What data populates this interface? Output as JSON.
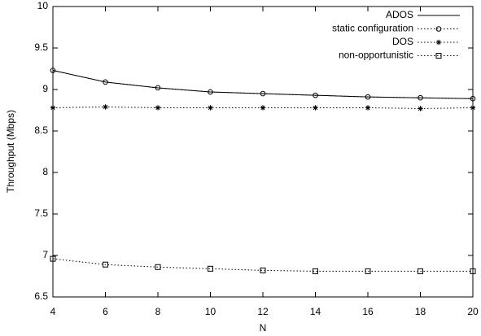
{
  "chart_data": {
    "type": "line",
    "x_label": "N",
    "y_label": "Throughput (Mbps)",
    "x": [
      4,
      6,
      8,
      10,
      12,
      14,
      16,
      18,
      20
    ],
    "series": [
      {
        "name": "ADOS",
        "color": "#000000",
        "dash": "solid",
        "marker": "none",
        "values": [
          9.23,
          9.09,
          9.02,
          8.97,
          8.95,
          8.93,
          8.91,
          8.9,
          8.89
        ]
      },
      {
        "name": "static configuration",
        "color": "#000000",
        "dash": "dotted",
        "marker": "circle",
        "values": [
          9.23,
          9.09,
          9.02,
          8.97,
          8.95,
          8.93,
          8.91,
          8.9,
          8.89
        ]
      },
      {
        "name": "DOS",
        "color": "#000000",
        "dash": "dotted",
        "marker": "star",
        "values": [
          8.78,
          8.79,
          8.78,
          8.78,
          8.78,
          8.78,
          8.78,
          8.77,
          8.78
        ]
      },
      {
        "name": "non-opportunistic",
        "color": "#000000",
        "dash": "dotted",
        "marker": "square",
        "values": [
          6.96,
          6.89,
          6.86,
          6.84,
          6.82,
          6.81,
          6.81,
          6.81,
          6.81
        ]
      }
    ],
    "xlim": [
      4,
      20
    ],
    "xticks": [
      4,
      6,
      8,
      10,
      12,
      14,
      16,
      18,
      20
    ],
    "ylim": [
      6.5,
      10
    ],
    "yticks": [
      6.5,
      7,
      7.5,
      8,
      8.5,
      9,
      9.5,
      10
    ],
    "legend": "top-right"
  }
}
